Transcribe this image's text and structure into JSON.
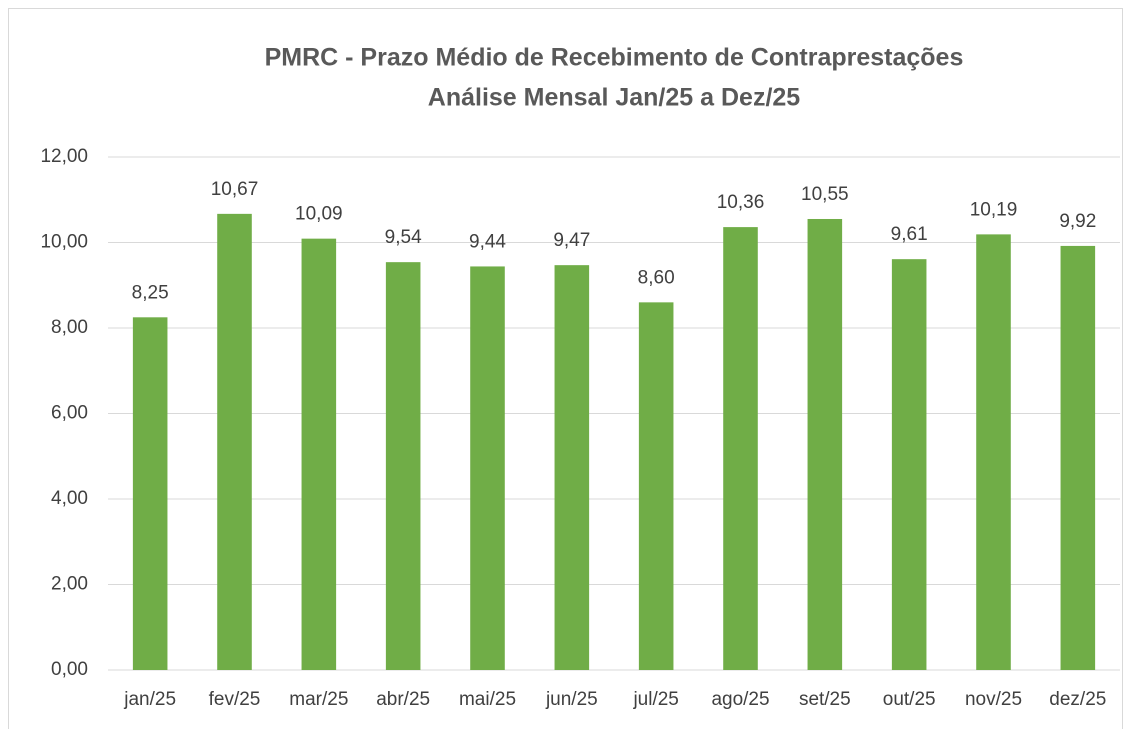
{
  "chart_data": {
    "type": "bar",
    "title": "PMRC - Prazo Médio de Recebimento de Contraprestações",
    "subtitle": "Análise Mensal Jan/25 a Dez/25",
    "categories": [
      "jan/25",
      "fev/25",
      "mar/25",
      "abr/25",
      "mai/25",
      "jun/25",
      "jul/25",
      "ago/25",
      "set/25",
      "out/25",
      "nov/25",
      "dez/25"
    ],
    "values": [
      8.25,
      10.67,
      10.09,
      9.54,
      9.44,
      9.47,
      8.6,
      10.36,
      10.55,
      9.61,
      10.19,
      9.92
    ],
    "value_labels": [
      "8,25",
      "10,67",
      "10,09",
      "9,54",
      "9,44",
      "9,47",
      "8,60",
      "10,36",
      "10,55",
      "9,61",
      "10,19",
      "9,92"
    ],
    "color": "#70ad47",
    "ylim": [
      0,
      12
    ],
    "yticks": [
      {
        "value": 0,
        "label": "0,00"
      },
      {
        "value": 2,
        "label": "2,00"
      },
      {
        "value": 4,
        "label": "4,00"
      },
      {
        "value": 6,
        "label": "6,00"
      },
      {
        "value": 8,
        "label": "8,00"
      },
      {
        "value": 10,
        "label": "10,00"
      },
      {
        "value": 12,
        "label": "12,00"
      }
    ],
    "grid": true
  }
}
